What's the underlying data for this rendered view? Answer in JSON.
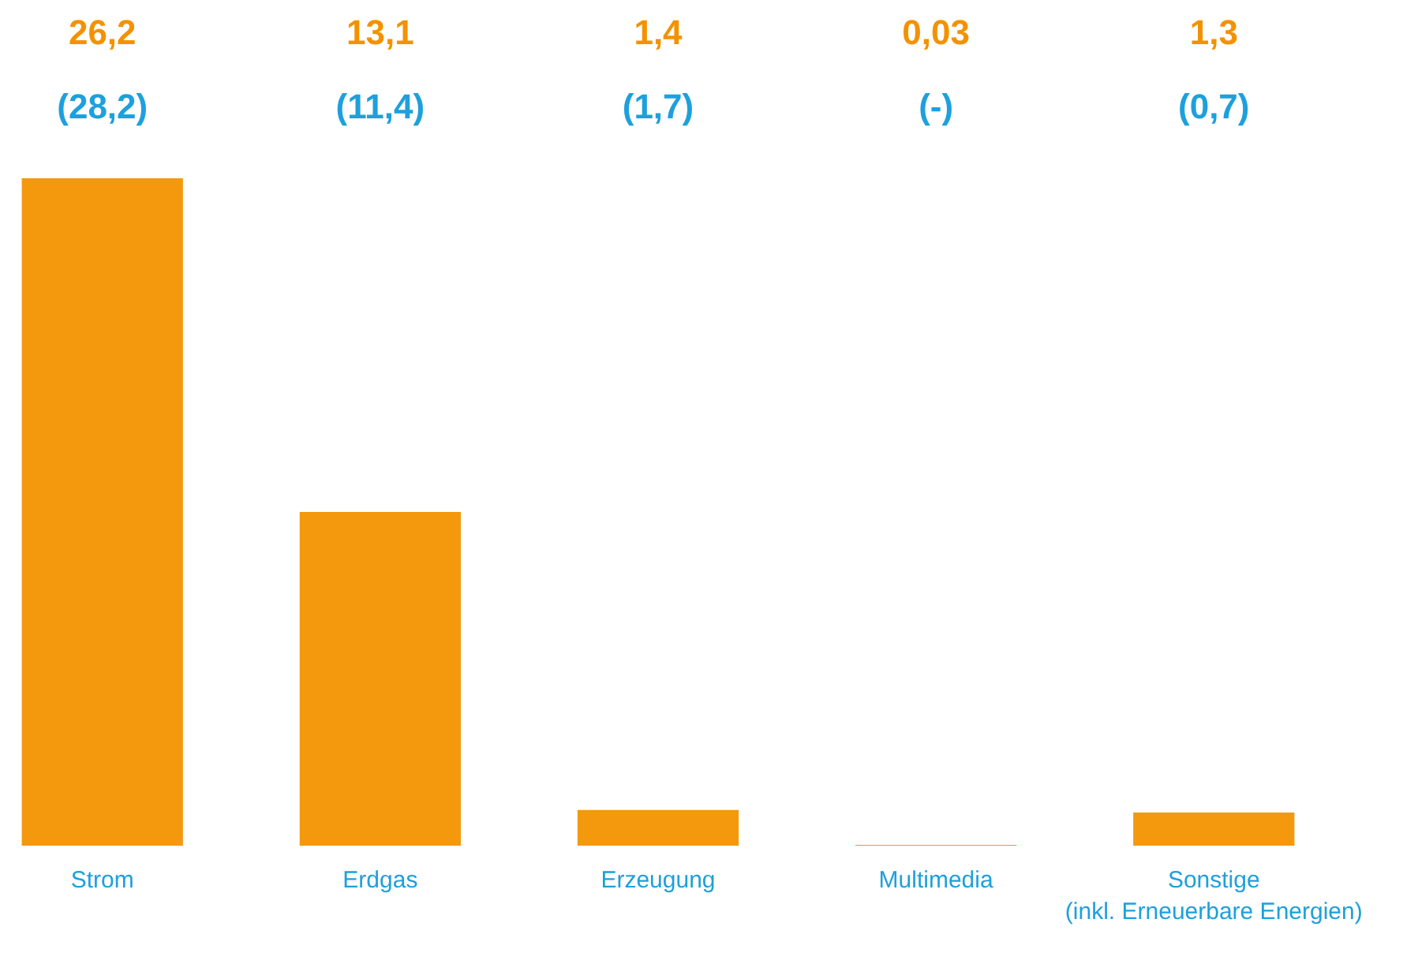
{
  "chart_data": {
    "type": "bar",
    "categories": [
      "Strom",
      "Erdgas",
      "Erzeugung",
      "Multimedia",
      "Sonstige\n(inkl. Erneuerbare Energien)"
    ],
    "values": [
      26.2,
      13.1,
      1.4,
      0.03,
      1.3
    ],
    "color": "#f39200",
    "value_labels": [
      "26,2",
      "13,1",
      "1,4",
      "0,03",
      "1,3"
    ],
    "annotations": [
      "(28,2)",
      "(11,4)",
      "(1,7)",
      "(-)",
      "(0,7)"
    ],
    "grid": false
  }
}
